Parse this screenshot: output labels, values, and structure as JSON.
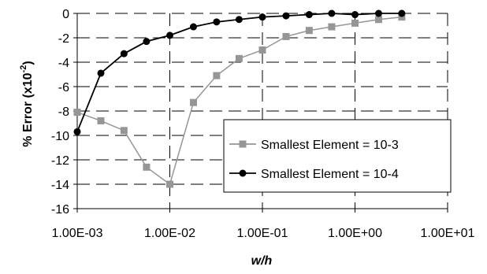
{
  "chart_data": {
    "type": "line",
    "xscale": "log",
    "xlim": [
      0.001,
      10
    ],
    "ylim": [
      -16,
      0
    ],
    "grid": "dashed horizontal and vertical",
    "legend_placement": "center-right",
    "xlabel": "w/h",
    "ylabel_main": "% Error (x10",
    "ylabel_exp": "-2",
    "ylabel_close": ")",
    "yticks": [
      0,
      -2,
      -4,
      -6,
      -8,
      -10,
      -12,
      -14,
      -16
    ],
    "yticklabels": [
      "0",
      "-2",
      "-4",
      "-6",
      "-8",
      "-10",
      "-12",
      "-14",
      "-16"
    ],
    "xticks": [
      0.001,
      0.01,
      0.1,
      1,
      10
    ],
    "xticklabels": [
      "1.00E-03",
      "1.00E-02",
      "1.00E-01",
      "1.00E+00",
      "1.00E+01"
    ],
    "series": [
      {
        "name": "Smallest Element = 10-3",
        "color": "#969696",
        "marker": "square",
        "x": [
          0.001,
          0.0018,
          0.0032,
          0.0056,
          0.01,
          0.018,
          0.032,
          0.056,
          0.1,
          0.18,
          0.32,
          0.56,
          1,
          1.8,
          3.2
        ],
        "y": [
          -8.1,
          -8.8,
          -9.6,
          -12.6,
          -14.0,
          -7.3,
          -5.1,
          -3.7,
          -3.0,
          -1.9,
          -1.4,
          -1.1,
          -0.8,
          -0.5,
          -0.3
        ]
      },
      {
        "name": "Smallest Element = 10-4",
        "color": "#000000",
        "marker": "circle",
        "x": [
          0.001,
          0.0018,
          0.0032,
          0.0056,
          0.01,
          0.018,
          0.032,
          0.056,
          0.1,
          0.18,
          0.32,
          0.56,
          1,
          1.8,
          3.2
        ],
        "y": [
          -9.7,
          -4.9,
          -3.3,
          -2.3,
          -1.8,
          -1.1,
          -0.7,
          -0.5,
          -0.3,
          -0.2,
          -0.1,
          0.0,
          -0.1,
          0.0,
          0.0
        ]
      }
    ]
  }
}
